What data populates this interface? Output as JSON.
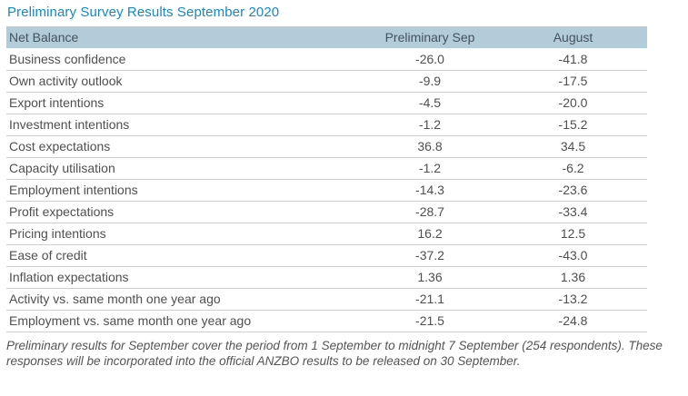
{
  "title": "Preliminary Survey Results September 2020",
  "table": {
    "columns": [
      "Net Balance",
      "Preliminary Sep",
      "August"
    ],
    "rows": [
      {
        "label": "Business confidence",
        "prelim_sep": "-26.0",
        "august": "-41.8"
      },
      {
        "label": "Own activity outlook",
        "prelim_sep": "-9.9",
        "august": "-17.5"
      },
      {
        "label": "Export intentions",
        "prelim_sep": "-4.5",
        "august": "-20.0"
      },
      {
        "label": "Investment intentions",
        "prelim_sep": "-1.2",
        "august": "-15.2"
      },
      {
        "label": "Cost expectations",
        "prelim_sep": "36.8",
        "august": "34.5"
      },
      {
        "label": "Capacity utilisation",
        "prelim_sep": "-1.2",
        "august": "-6.2"
      },
      {
        "label": "Employment intentions",
        "prelim_sep": "-14.3",
        "august": "-23.6"
      },
      {
        "label": "Profit expectations",
        "prelim_sep": "-28.7",
        "august": "-33.4"
      },
      {
        "label": "Pricing intentions",
        "prelim_sep": "16.2",
        "august": "12.5"
      },
      {
        "label": "Ease of credit",
        "prelim_sep": "-37.2",
        "august": "-43.0"
      },
      {
        "label": "Inflation expectations",
        "prelim_sep": "1.36",
        "august": "1.36"
      },
      {
        "label": "Activity vs. same month one year ago",
        "prelim_sep": "-21.1",
        "august": "-13.2"
      },
      {
        "label": "Employment vs. same month one year ago",
        "prelim_sep": "-21.5",
        "august": "-24.8"
      }
    ]
  },
  "footnote": "Preliminary results for September cover the period from 1 September to midnight 7 September (254 respondents). These responses will be incorporated into the official ANZBO results to be released on 30 September.",
  "colors": {
    "title": "#1787c6",
    "header_bg": "#b2ccda",
    "header_text": "#46525a",
    "row_text": "#4f4f4f",
    "row_border": "#bfd4e0",
    "footnote_text": "#545454"
  }
}
